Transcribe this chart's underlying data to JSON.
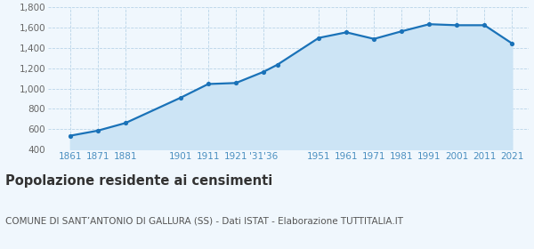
{
  "years": [
    1861,
    1871,
    1881,
    1901,
    1911,
    1921,
    1931,
    1936,
    1951,
    1961,
    1971,
    1981,
    1991,
    2001,
    2011,
    2021
  ],
  "population": [
    535,
    585,
    660,
    910,
    1045,
    1055,
    1165,
    1235,
    1500,
    1555,
    1490,
    1565,
    1635,
    1625,
    1625,
    1445
  ],
  "ylim": [
    400,
    1800
  ],
  "yticks": [
    600,
    800,
    1000,
    1200,
    1400,
    1600,
    1800
  ],
  "ytick_top": 1800,
  "line_color": "#1a72b8",
  "fill_color": "#cce4f5",
  "marker_color": "#1a72b8",
  "bg_color": "#f0f7fd",
  "grid_color": "#b8d4e8",
  "title": "Popolazione residente ai censimenti",
  "subtitle": "COMUNE DI SANT’ANTONIO DI GALLURA (SS) - Dati ISTAT - Elaborazione TUTTITALIA.IT",
  "title_fontsize": 10.5,
  "subtitle_fontsize": 7.5,
  "title_color": "#333333",
  "subtitle_color": "#555555",
  "tick_color": "#4a8fc0",
  "ytick_color": "#666666",
  "x_positions": [
    1861,
    1871,
    1881,
    1901,
    1911,
    1921,
    1931,
    1951,
    1961,
    1971,
    1981,
    1991,
    2001,
    2011,
    2021
  ],
  "x_labels": [
    "1861",
    "1871",
    "1881",
    "1901",
    "1911",
    "1921",
    "'31'36",
    "1951",
    "1961",
    "1971",
    "1981",
    "1991",
    "2001",
    "2011",
    "2021"
  ]
}
